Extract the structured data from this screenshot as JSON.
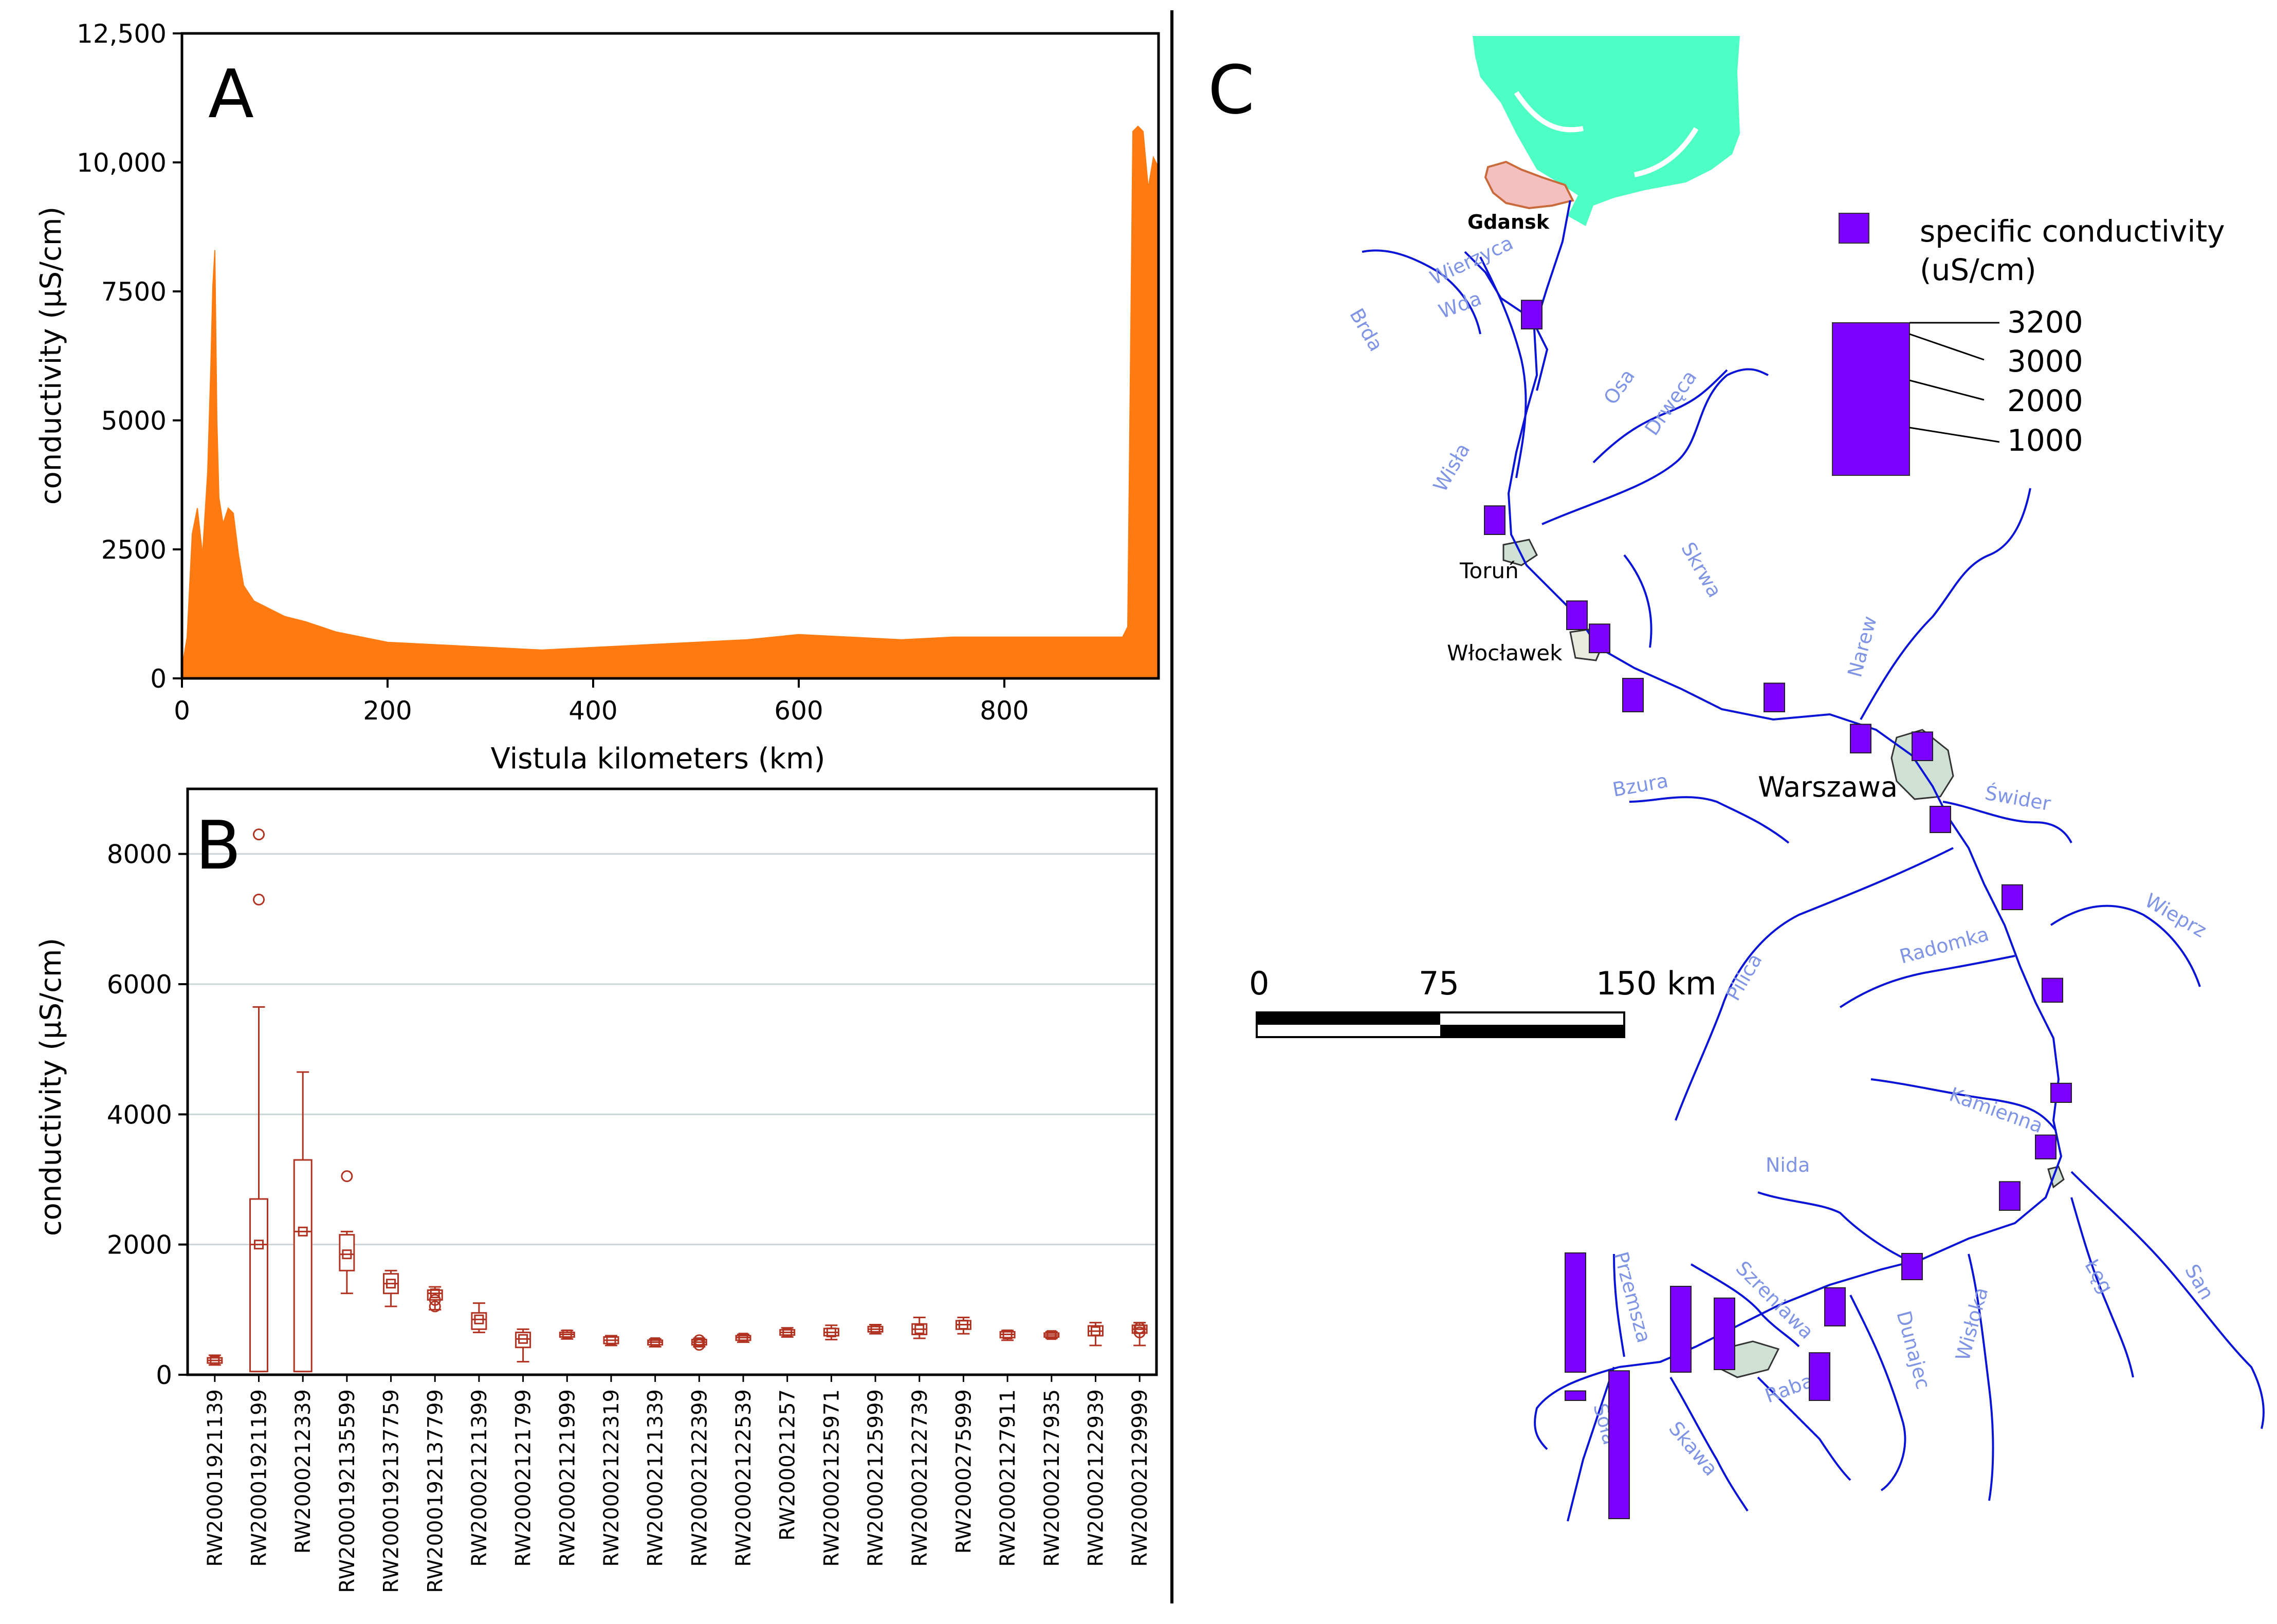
{
  "chart_data": [
    {
      "panel": "A",
      "type": "area",
      "xlabel": "Vistula kilometers (km)",
      "ylabel": "conductivity (µS/cm)",
      "xlim": [
        0,
        950
      ],
      "ylim": [
        0,
        12500
      ],
      "xticks": [
        0,
        200,
        400,
        600,
        800
      ],
      "yticks": [
        {
          "value": 0,
          "label": "0"
        },
        {
          "value": 2500,
          "label": "2500"
        },
        {
          "value": 5000,
          "label": "5000"
        },
        {
          "value": 7500,
          "label": "7500"
        },
        {
          "value": 10000,
          "label": "10,000"
        },
        {
          "value": 12500,
          "label": "12,500"
        }
      ],
      "color": "#ff7a10",
      "x": [
        0,
        5,
        10,
        15,
        20,
        25,
        28,
        30,
        32,
        34,
        36,
        40,
        45,
        50,
        55,
        60,
        70,
        80,
        90,
        100,
        120,
        150,
        200,
        250,
        300,
        350,
        400,
        450,
        500,
        550,
        600,
        650,
        700,
        750,
        800,
        850,
        900,
        915,
        920,
        925,
        930,
        935,
        940,
        945,
        950
      ],
      "y": [
        200,
        800,
        2800,
        3300,
        2400,
        4000,
        6000,
        7600,
        8300,
        5000,
        3500,
        3000,
        3300,
        3200,
        2400,
        1800,
        1500,
        1400,
        1300,
        1200,
        1100,
        900,
        700,
        650,
        600,
        550,
        600,
        650,
        700,
        750,
        850,
        800,
        750,
        800,
        800,
        800,
        800,
        800,
        1000,
        10600,
        10700,
        10600,
        9500,
        10100,
        9900
      ]
    },
    {
      "panel": "B",
      "type": "box",
      "ylabel": "conductivity (µS/cm)",
      "ylim": [
        0,
        9000
      ],
      "yticks": [
        0,
        2000,
        4000,
        6000,
        8000
      ],
      "color": "#b23222",
      "categories": [
        "RW20001921139",
        "RW20001921199",
        "RW2000212339",
        "RW2000192135599",
        "RW2000192137759",
        "RW2000192137799",
        "RW20002121399",
        "RW20002121799",
        "RW20002121999",
        "RW20002122319",
        "RW20002121339",
        "RW20002122399",
        "RW20002122539",
        "RW200021257",
        "RW20002125971",
        "RW20002125999",
        "RW20002122739",
        "RW2000275999",
        "RW20002127911",
        "RW20002127935",
        "RW20002122939",
        "RW20002129999"
      ],
      "boxes": [
        {
          "min": 150,
          "q1": 180,
          "median": 220,
          "mean": 220,
          "q3": 260,
          "max": 300,
          "outliers": []
        },
        {
          "min": 50,
          "q1": 50,
          "median": 2000,
          "mean": 2000,
          "q3": 2700,
          "max": 5650,
          "outliers": [
            7300,
            8300
          ]
        },
        {
          "min": 50,
          "q1": 50,
          "median": 2200,
          "mean": 2200,
          "q3": 3300,
          "max": 4650,
          "outliers": []
        },
        {
          "min": 1250,
          "q1": 1600,
          "median": 1850,
          "mean": 1850,
          "q3": 2150,
          "max": 2200,
          "outliers": [
            3050
          ]
        },
        {
          "min": 1050,
          "q1": 1250,
          "median": 1400,
          "mean": 1400,
          "q3": 1550,
          "max": 1600,
          "outliers": []
        },
        {
          "min": 1000,
          "q1": 1150,
          "median": 1250,
          "mean": 1250,
          "q3": 1300,
          "max": 1350,
          "outliers": [
            1050,
            1150
          ]
        },
        {
          "min": 650,
          "q1": 700,
          "median": 850,
          "mean": 850,
          "q3": 950,
          "max": 1100,
          "outliers": []
        },
        {
          "min": 200,
          "q1": 420,
          "median": 550,
          "mean": 550,
          "q3": 650,
          "max": 700,
          "outliers": []
        },
        {
          "min": 550,
          "q1": 580,
          "median": 620,
          "mean": 620,
          "q3": 650,
          "max": 680,
          "outliers": []
        },
        {
          "min": 450,
          "q1": 480,
          "median": 530,
          "mean": 530,
          "q3": 580,
          "max": 600,
          "outliers": []
        },
        {
          "min": 430,
          "q1": 460,
          "median": 500,
          "mean": 500,
          "q3": 530,
          "max": 550,
          "outliers": []
        },
        {
          "min": 430,
          "q1": 460,
          "median": 500,
          "mean": 500,
          "q3": 540,
          "max": 560,
          "outliers": [
            460,
            530
          ]
        },
        {
          "min": 500,
          "q1": 530,
          "median": 570,
          "mean": 570,
          "q3": 600,
          "max": 620,
          "outliers": []
        },
        {
          "min": 580,
          "q1": 610,
          "median": 650,
          "mean": 650,
          "q3": 690,
          "max": 720,
          "outliers": []
        },
        {
          "min": 540,
          "q1": 600,
          "median": 650,
          "mean": 650,
          "q3": 710,
          "max": 760,
          "outliers": []
        },
        {
          "min": 630,
          "q1": 660,
          "median": 700,
          "mean": 700,
          "q3": 740,
          "max": 770,
          "outliers": []
        },
        {
          "min": 560,
          "q1": 620,
          "median": 700,
          "mean": 700,
          "q3": 780,
          "max": 880,
          "outliers": []
        },
        {
          "min": 630,
          "q1": 700,
          "median": 770,
          "mean": 770,
          "q3": 830,
          "max": 880,
          "outliers": []
        },
        {
          "min": 530,
          "q1": 570,
          "median": 620,
          "mean": 620,
          "q3": 660,
          "max": 680,
          "outliers": []
        },
        {
          "min": 560,
          "q1": 580,
          "median": 610,
          "mean": 610,
          "q3": 640,
          "max": 660,
          "outliers": []
        },
        {
          "min": 450,
          "q1": 600,
          "median": 670,
          "mean": 670,
          "q3": 750,
          "max": 800,
          "outliers": []
        },
        {
          "min": 450,
          "q1": 640,
          "median": 700,
          "mean": 700,
          "q3": 760,
          "max": 800,
          "outliers": [
            650,
            720
          ]
        }
      ]
    }
  ],
  "panel_labels": {
    "a": "A",
    "b": "B",
    "c": "C"
  },
  "map": {
    "legend": {
      "title_line1": "specific conductivity",
      "title_line2": "(uS/cm)",
      "color": "#7b00ff",
      "levels": [
        "3200",
        "3000",
        "2000",
        "1000"
      ]
    },
    "scale_bar": {
      "label0": "0",
      "label1": "75",
      "label2": "150 km"
    },
    "cities": [
      "Gdansk",
      "Toruń",
      "Włocławek",
      "Warszawa"
    ],
    "rivers": [
      "Wierzyca",
      "Wda",
      "Brda",
      "Osa",
      "Drwęca",
      "Wisła",
      "Skrwa",
      "Narew",
      "Bzura",
      "Świder",
      "Wieprz",
      "Radomka",
      "Pilica",
      "Kamienna",
      "Nida",
      "Przemsza",
      "Szreniawa",
      "Dunajec",
      "Wisłoka",
      "San",
      "Łęg",
      "Raba",
      "Skawa",
      "Soła"
    ],
    "bar_values": [
      {
        "id": "bar-wda",
        "value": 600
      },
      {
        "id": "bar-torun",
        "value": 600
      },
      {
        "id": "bar-wloclawek-1",
        "value": 600
      },
      {
        "id": "bar-wloclawek-2",
        "value": 600
      },
      {
        "id": "bar-below-wloclawek",
        "value": 700
      },
      {
        "id": "bar-mid",
        "value": 600
      },
      {
        "id": "bar-warszawa-1",
        "value": 600
      },
      {
        "id": "bar-warszawa-2",
        "value": 600
      },
      {
        "id": "bar-below-warszawa",
        "value": 550
      },
      {
        "id": "bar-wieprz",
        "value": 520
      },
      {
        "id": "bar-radomka",
        "value": 500
      },
      {
        "id": "bar-kamienna",
        "value": 400
      },
      {
        "id": "bar-sandomierz",
        "value": 500
      },
      {
        "id": "bar-wisloka",
        "value": 600
      },
      {
        "id": "bar-dunajec",
        "value": 550
      },
      {
        "id": "bar-szreniawa",
        "value": 800
      },
      {
        "id": "bar-raba",
        "value": 1000
      },
      {
        "id": "bar-krakow",
        "value": 1500
      },
      {
        "id": "bar-przemsza-2",
        "value": 1800
      },
      {
        "id": "bar-przemsza-1",
        "value": 2500
      },
      {
        "id": "bar-sola",
        "value": 200
      },
      {
        "id": "bar-upper",
        "value": 3100
      }
    ]
  }
}
